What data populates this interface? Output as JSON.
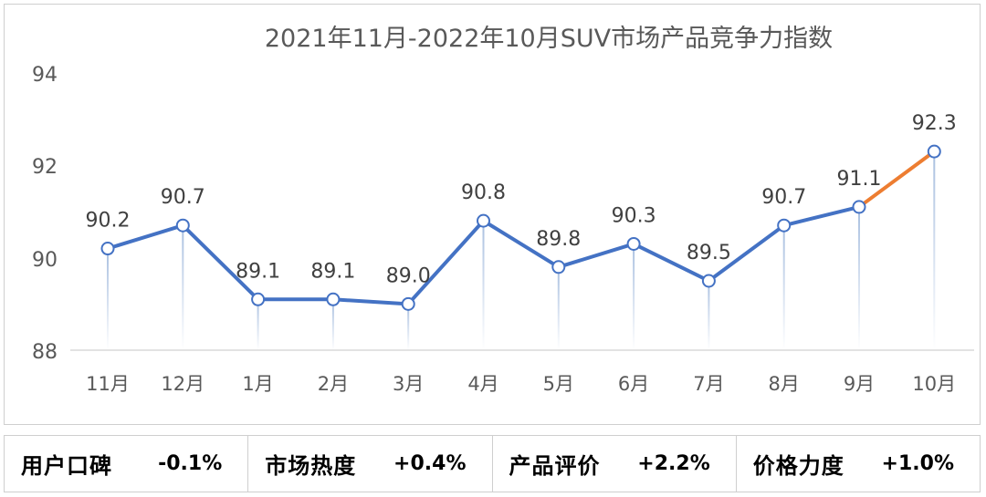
{
  "chart_data": {
    "type": "line",
    "title": "2021年11月-2022年10月SUV市场产品竞争力指数",
    "categories": [
      "11月",
      "12月",
      "1月",
      "2月",
      "3月",
      "4月",
      "5月",
      "6月",
      "7月",
      "8月",
      "9月",
      "10月"
    ],
    "values": [
      90.2,
      90.7,
      89.1,
      89.1,
      89.0,
      90.8,
      89.8,
      90.3,
      89.5,
      90.7,
      91.1,
      92.3
    ],
    "labels": [
      "90.2",
      "90.7",
      "89.1",
      "89.1",
      "89.0",
      "90.8",
      "89.8",
      "90.3",
      "89.5",
      "90.7",
      "91.1",
      "92.3"
    ],
    "yticks": [
      "94",
      "92",
      "90",
      "88"
    ],
    "ylim": [
      88,
      94
    ],
    "xlabel": "",
    "ylabel": "",
    "grid": false,
    "colors": {
      "line": "#4472C4",
      "highlight": "#ED7D31",
      "marker_fill": "#ffffff",
      "axis": "#d9d9d9"
    }
  },
  "metrics": [
    {
      "label": "用户口碑",
      "value": "-0.1%"
    },
    {
      "label": "市场热度",
      "value": "+0.4%"
    },
    {
      "label": "产品评价",
      "value": "+2.2%"
    },
    {
      "label": "价格力度",
      "value": "+1.0%"
    }
  ]
}
